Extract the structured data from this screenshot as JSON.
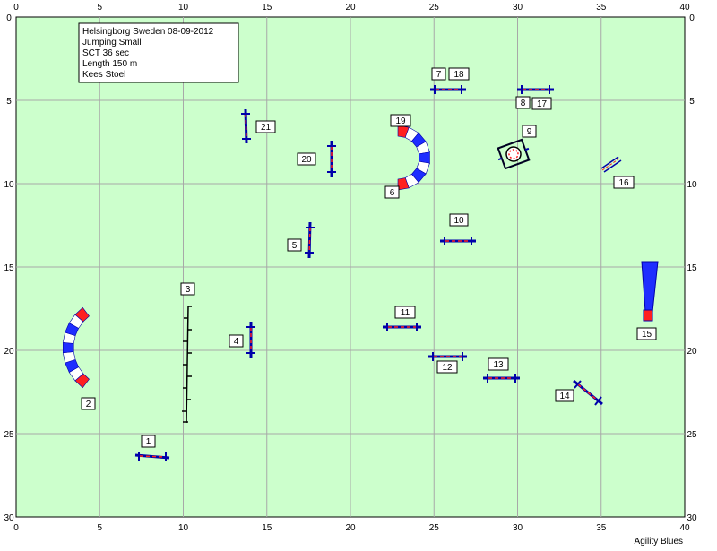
{
  "info": {
    "lines": [
      "Helsingborg Sweden 08-09-2012",
      "Jumping Small",
      "SCT 36 sec",
      "Length 150 m",
      "Kees Stoel"
    ]
  },
  "axes": {
    "x_ticks": [
      "0",
      "5",
      "10",
      "15",
      "20",
      "25",
      "30",
      "35",
      "40"
    ],
    "y_ticks": [
      "0",
      "5",
      "10",
      "15",
      "20",
      "25",
      "30"
    ],
    "x_range": [
      0,
      40
    ],
    "y_range": [
      0,
      30
    ],
    "grid": true
  },
  "footer": "Agility Blues",
  "colors": {
    "field": "#ccffcc",
    "grid": "#a8a8a8",
    "pole_red": "#ff2020",
    "stand_blue": "#0000aa",
    "tunnel_red": "#ff2020",
    "tunnel_blue": "#1e2dff",
    "tunnel_white": "#ffffff"
  },
  "obstacles": [
    {
      "id": "jump-1",
      "label": "1"
    },
    {
      "id": "tunnel-2",
      "label": "2"
    },
    {
      "id": "weave-3",
      "label": "3"
    },
    {
      "id": "jump-4",
      "label": "4"
    },
    {
      "id": "jump-5",
      "label": "5"
    },
    {
      "id": "tunnel-6",
      "label": "6"
    },
    {
      "id": "jump-7",
      "label": "7"
    },
    {
      "id": "jump-8",
      "label": "8"
    },
    {
      "id": "tire-9",
      "label": "9"
    },
    {
      "id": "jump-10",
      "label": "10"
    },
    {
      "id": "jump-11",
      "label": "11"
    },
    {
      "id": "jump-12",
      "label": "12"
    },
    {
      "id": "jump-13",
      "label": "13"
    },
    {
      "id": "jump-14",
      "label": "14"
    },
    {
      "id": "tunnel-15",
      "label": "15"
    },
    {
      "id": "wall-16",
      "label": "16"
    },
    {
      "id": "jump-17",
      "label": "17"
    },
    {
      "id": "jump-18",
      "label": "18"
    },
    {
      "id": "tunnel-19",
      "label": "19"
    },
    {
      "id": "jump-20",
      "label": "20"
    },
    {
      "id": "jump-21",
      "label": "21"
    }
  ]
}
